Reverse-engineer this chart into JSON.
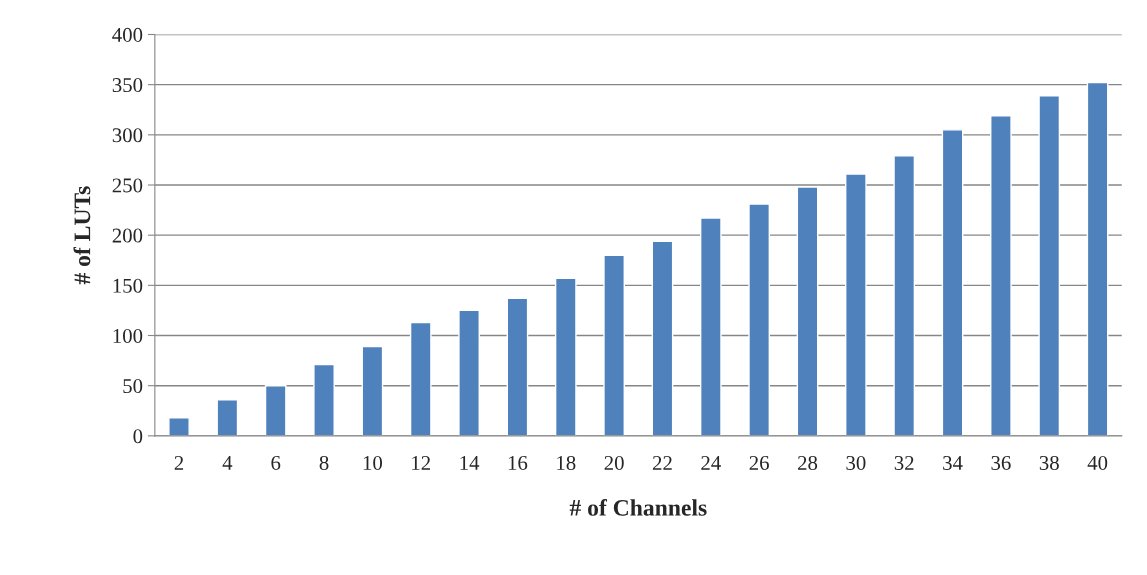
{
  "chart_data": {
    "type": "bar",
    "xlabel": "# of Channels",
    "ylabel": "# of LUTs",
    "categories": [
      "2",
      "4",
      "6",
      "8",
      "10",
      "12",
      "14",
      "16",
      "18",
      "20",
      "22",
      "24",
      "26",
      "28",
      "30",
      "32",
      "34",
      "36",
      "38",
      "40"
    ],
    "values": [
      18,
      36,
      50,
      71,
      89,
      113,
      125,
      137,
      157,
      180,
      194,
      217,
      231,
      248,
      261,
      279,
      305,
      319,
      339,
      352
    ],
    "color": "#4f81bd",
    "ylim": [
      0,
      400
    ],
    "yticks": [
      0,
      50,
      100,
      150,
      200,
      250,
      300,
      350,
      400
    ],
    "grid": "y",
    "legend": false
  }
}
